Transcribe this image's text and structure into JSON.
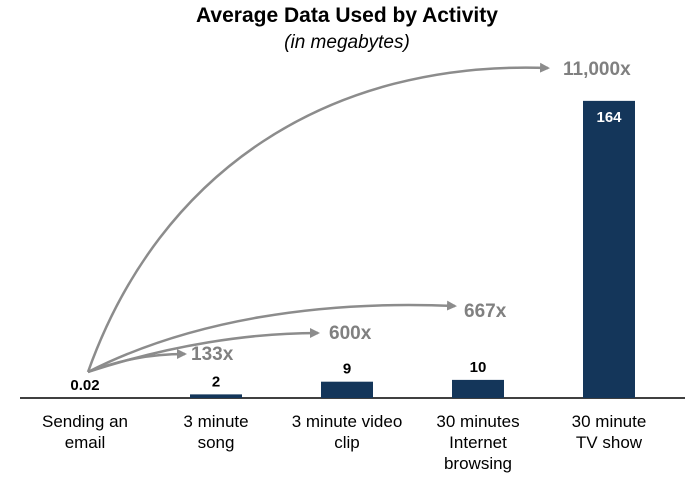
{
  "chart_data": {
    "type": "bar",
    "title": "Average Data Used by Activity",
    "subtitle": "(in megabytes)",
    "categories": [
      [
        "Sending an",
        "email"
      ],
      [
        "3 minute",
        "song"
      ],
      [
        "3 minute video",
        "clip"
      ],
      [
        "30 minutes",
        "Internet",
        "browsing"
      ],
      [
        "30 minute",
        "TV show"
      ]
    ],
    "values": [
      0.02,
      2,
      9,
      10,
      164
    ],
    "value_labels": [
      "0.02",
      "2",
      "9",
      "10",
      "164"
    ],
    "ylim": [
      0,
      170
    ],
    "grid": false,
    "bar_color": "#14365a",
    "annotations": [
      {
        "label": "133x",
        "target_index": 1
      },
      {
        "label": "600x",
        "target_index": 2
      },
      {
        "label": "667x",
        "target_index": 3
      },
      {
        "label": "11,000x",
        "target_index": 4
      }
    ],
    "arrow_color": "#8c8c8c"
  }
}
